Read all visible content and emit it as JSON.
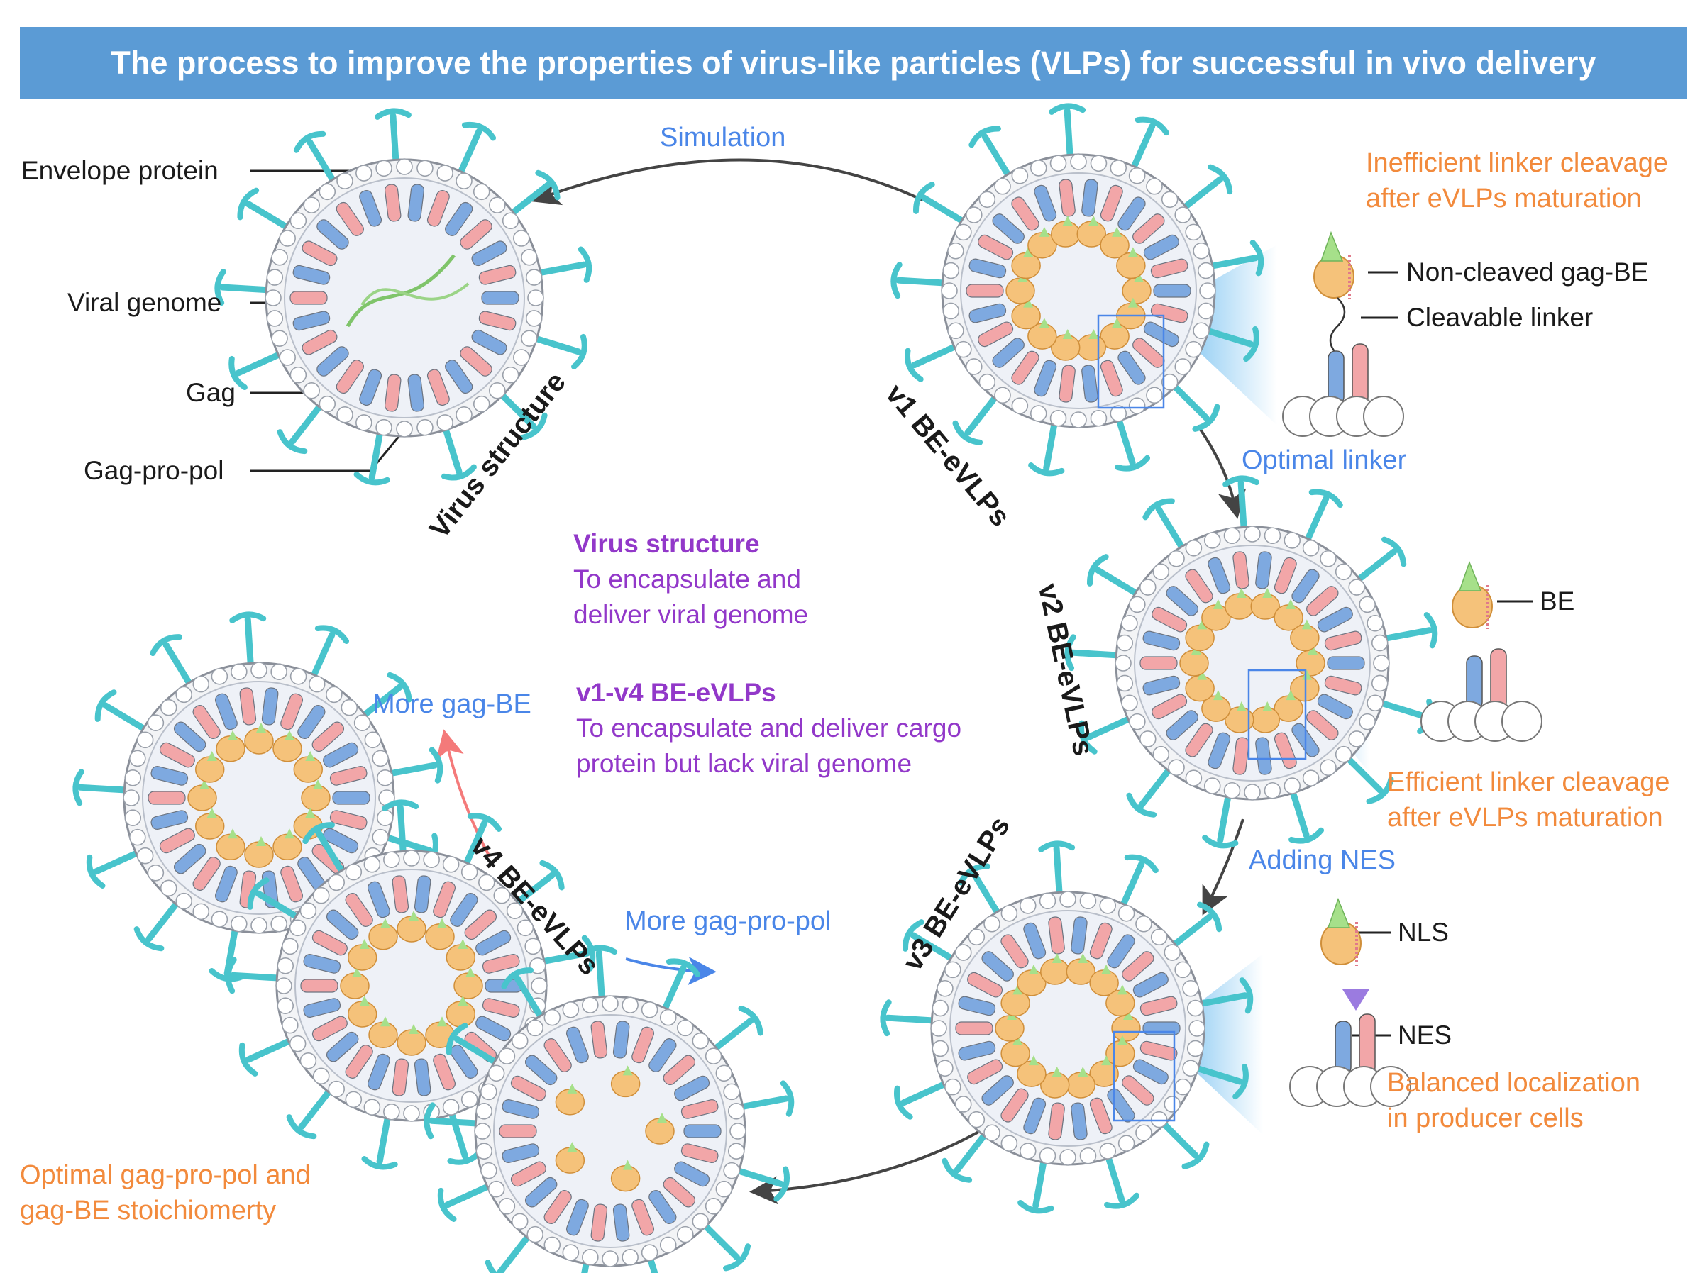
{
  "title": "The process to improve the properties of virus-like particles (VLPs) for successful in vivo delivery",
  "structure_labels": {
    "envelope": "Envelope protein",
    "genome": "Viral genome",
    "gag": "Gag",
    "gagpropol": "Gag-pro-pol"
  },
  "stages": {
    "virus": "Virus structure",
    "v1": "v1 BE-eVLPs",
    "v2": "v2 BE-eVLPs",
    "v3": "v3 BE-eVLPs",
    "v4": "v4 BE-eVLPs"
  },
  "transitions": {
    "simulation": "Simulation",
    "optimal_linker": "Optimal linker",
    "adding_nes": "Adding NES",
    "more_gag_be": "More gag-BE",
    "more_gag_pro_pol": "More gag-pro-pol"
  },
  "detail_labels": {
    "non_cleaved": "Non-cleaved gag-BE",
    "cleavable_linker": "Cleavable linker",
    "be": "BE",
    "nls": "NLS",
    "nes": "NES"
  },
  "notes": {
    "v1_line1": "Inefficient linker cleavage",
    "v1_line2": "after eVLPs maturation",
    "v2_line1": "Efficient linker cleavage",
    "v2_line2": "after eVLPs maturation",
    "v3_line1": "Balanced localization",
    "v3_line2": "in producer cells",
    "v4_line1": "Optimal gag-pro-pol and",
    "v4_line2": "gag-BE stoichiomerty"
  },
  "center_text": {
    "virus_head": "Virus structure",
    "virus_l1": "To encapsulate and",
    "virus_l2": "deliver viral genome",
    "evlp_head": "v1-v4 BE-eVLPs",
    "evlp_l1": "To encapsulate and deliver cargo",
    "evlp_l2": "protein but lack viral genome"
  },
  "colors": {
    "title_band": "#5b9bd5",
    "blue_text": "#4a86e8",
    "orange_text": "#f28a3c",
    "purple_text": "#9238c9",
    "spike": "#48c4cc",
    "gag_blue": "#7ea9e0",
    "gag_pink": "#f2a6a8",
    "cargo": "#f5c27a",
    "arrow_pink": "#f47a7a"
  }
}
